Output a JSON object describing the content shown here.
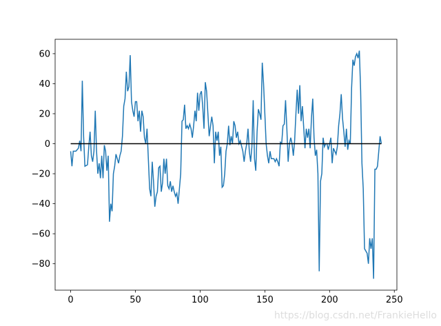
{
  "chart_data": {
    "type": "line",
    "watermark": "https://blog.csdn.net/FrankieHello",
    "xlim": [
      -12,
      252
    ],
    "ylim": [
      -97.6,
      69.6
    ],
    "xticks": [
      0,
      50,
      100,
      150,
      200,
      250
    ],
    "yticks": [
      {
        "value": -80,
        "label": "−80"
      },
      {
        "value": -60,
        "label": "−60"
      },
      {
        "value": -40,
        "label": "−40"
      },
      {
        "value": -20,
        "label": "−20"
      },
      0,
      20,
      40,
      60
    ],
    "series": [
      {
        "color": "#1f77b4",
        "x": [
          0,
          1,
          2,
          3,
          4,
          5,
          6,
          7,
          8,
          9,
          10,
          11,
          13,
          14,
          15,
          16,
          17,
          18,
          19,
          20,
          21,
          22,
          23,
          24,
          25,
          26,
          27,
          28,
          29,
          30,
          31,
          32,
          33,
          34,
          35,
          37,
          38,
          39,
          40,
          41,
          42,
          43,
          44,
          45,
          46,
          47,
          48,
          49,
          50,
          51,
          52,
          53,
          54,
          55,
          56,
          57,
          58,
          59,
          61,
          62,
          63,
          64,
          65,
          66,
          67,
          68,
          69,
          70,
          71,
          72,
          73,
          74,
          75,
          76,
          77,
          78,
          79,
          80,
          81,
          82,
          83,
          85,
          86,
          87,
          88,
          89,
          90,
          91,
          92,
          93,
          94,
          95,
          96,
          97,
          98,
          99,
          100,
          101,
          102,
          103,
          104,
          105,
          106,
          107,
          109,
          110,
          111,
          112,
          113,
          114,
          115,
          116,
          117,
          118,
          119,
          120,
          121,
          122,
          123,
          124,
          125,
          126,
          127,
          128,
          129,
          130,
          131,
          133,
          134,
          135,
          136,
          137,
          138,
          139,
          140,
          141,
          142,
          143,
          144,
          145,
          146,
          147,
          148,
          149,
          150,
          151,
          152,
          153,
          154,
          155,
          157,
          158,
          159,
          160,
          161,
          162,
          163,
          164,
          165,
          166,
          167,
          168,
          169,
          170,
          171,
          172,
          173,
          174,
          175,
          176,
          177,
          178,
          179,
          181,
          182,
          183,
          184,
          185,
          186,
          187,
          188,
          189,
          190,
          191,
          192,
          193,
          194,
          195,
          196,
          197,
          198,
          199,
          200,
          201,
          202,
          203,
          205,
          206,
          207,
          208,
          209,
          210,
          211,
          212,
          213,
          214,
          215,
          216,
          217,
          218,
          219,
          220,
          221,
          222,
          223,
          224,
          225,
          226,
          227,
          229,
          230,
          231,
          232,
          233,
          234,
          235,
          236,
          237,
          238,
          239,
          240
        ],
        "values": [
          -5,
          -15,
          -5,
          -5,
          -5,
          -4,
          -3,
          2,
          -5,
          42,
          5,
          -15,
          -14,
          -2,
          8,
          -8,
          -12,
          -5,
          22,
          -5,
          -20,
          -13,
          -23,
          -8,
          -23,
          -1,
          -5,
          -18,
          -8,
          -52,
          -40,
          -45,
          -20,
          -15,
          -7,
          -13,
          -8,
          -5,
          5,
          25,
          30,
          48,
          35,
          38,
          59,
          28,
          22,
          18,
          28,
          28,
          15,
          22,
          8,
          22,
          18,
          4,
          0,
          10,
          -30,
          -35,
          -12,
          -25,
          -42,
          -35,
          -32,
          -16,
          -15,
          -32,
          -26,
          -10,
          -20,
          -10,
          -28,
          -30,
          -25,
          -32,
          -28,
          -32,
          -35,
          -33,
          -40,
          -20,
          15,
          16,
          26,
          10,
          12,
          10,
          13,
          10,
          4,
          12,
          22,
          15,
          34,
          22,
          33,
          35,
          25,
          10,
          41,
          35,
          20,
          5,
          18,
          12,
          -13,
          8,
          2,
          8,
          -8,
          -2,
          -29,
          -28,
          -20,
          -5,
          0,
          12,
          -1,
          5,
          0,
          15,
          12,
          4,
          8,
          0,
          2,
          -5,
          -12,
          -5,
          0,
          10,
          -5,
          -12,
          -2,
          29,
          -10,
          -18,
          8,
          23,
          20,
          16,
          54,
          40,
          20,
          0,
          -8,
          -13,
          -5,
          -10,
          -10,
          -12,
          -10,
          -12,
          -15,
          1,
          0,
          12,
          13,
          29,
          10,
          -12,
          0,
          4,
          0,
          -8,
          2,
          20,
          36,
          20,
          39,
          15,
          25,
          -3,
          10,
          4,
          10,
          -3,
          17,
          30,
          4,
          -8,
          -4,
          -20,
          -85,
          -25,
          -20,
          4,
          -2,
          0,
          0,
          -4,
          0,
          4,
          -13,
          -3,
          -7,
          -2,
          12,
          20,
          33,
          17,
          8,
          -2,
          10,
          -4,
          2,
          0,
          37,
          56,
          52,
          58,
          60,
          57,
          62,
          35,
          -13,
          -30,
          -70,
          -73,
          -80,
          -63,
          -70,
          -63,
          -90,
          -17,
          -17,
          -15,
          -5,
          5,
          0
        ]
      },
      {
        "color": "#000000",
        "x": [
          0,
          240
        ],
        "values": [
          0,
          0
        ]
      }
    ]
  }
}
